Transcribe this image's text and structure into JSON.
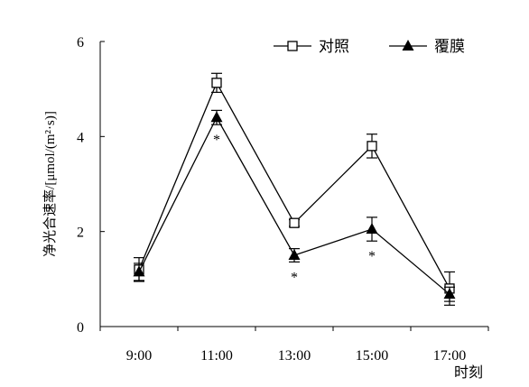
{
  "chart_data": {
    "type": "line",
    "title": "",
    "xlabel": "时刻",
    "ylabel": "净光合速率/[μmol/(m²·s)]",
    "categories": [
      "9:00",
      "11:00",
      "13:00",
      "15:00",
      "17:00"
    ],
    "ylim": [
      0,
      6
    ],
    "yticks": [
      "0",
      "2",
      "4",
      "6"
    ],
    "grid": false,
    "legend_position": "top-right",
    "series": [
      {
        "name": "对照",
        "marker": "open-square",
        "values": [
          1.2,
          5.13,
          2.18,
          3.8,
          0.8
        ],
        "errors": [
          0.25,
          0.2,
          0.07,
          0.25,
          0.35
        ]
      },
      {
        "name": "覆膜",
        "marker": "filled-triangle",
        "values": [
          1.15,
          4.4,
          1.5,
          2.05,
          0.68
        ],
        "errors": [
          0.18,
          0.15,
          0.14,
          0.25,
          0.15
        ]
      }
    ],
    "annotations": [
      {
        "category": "11:00",
        "text": "*"
      },
      {
        "category": "13:00",
        "text": "*"
      },
      {
        "category": "15:00",
        "text": "*"
      }
    ]
  }
}
